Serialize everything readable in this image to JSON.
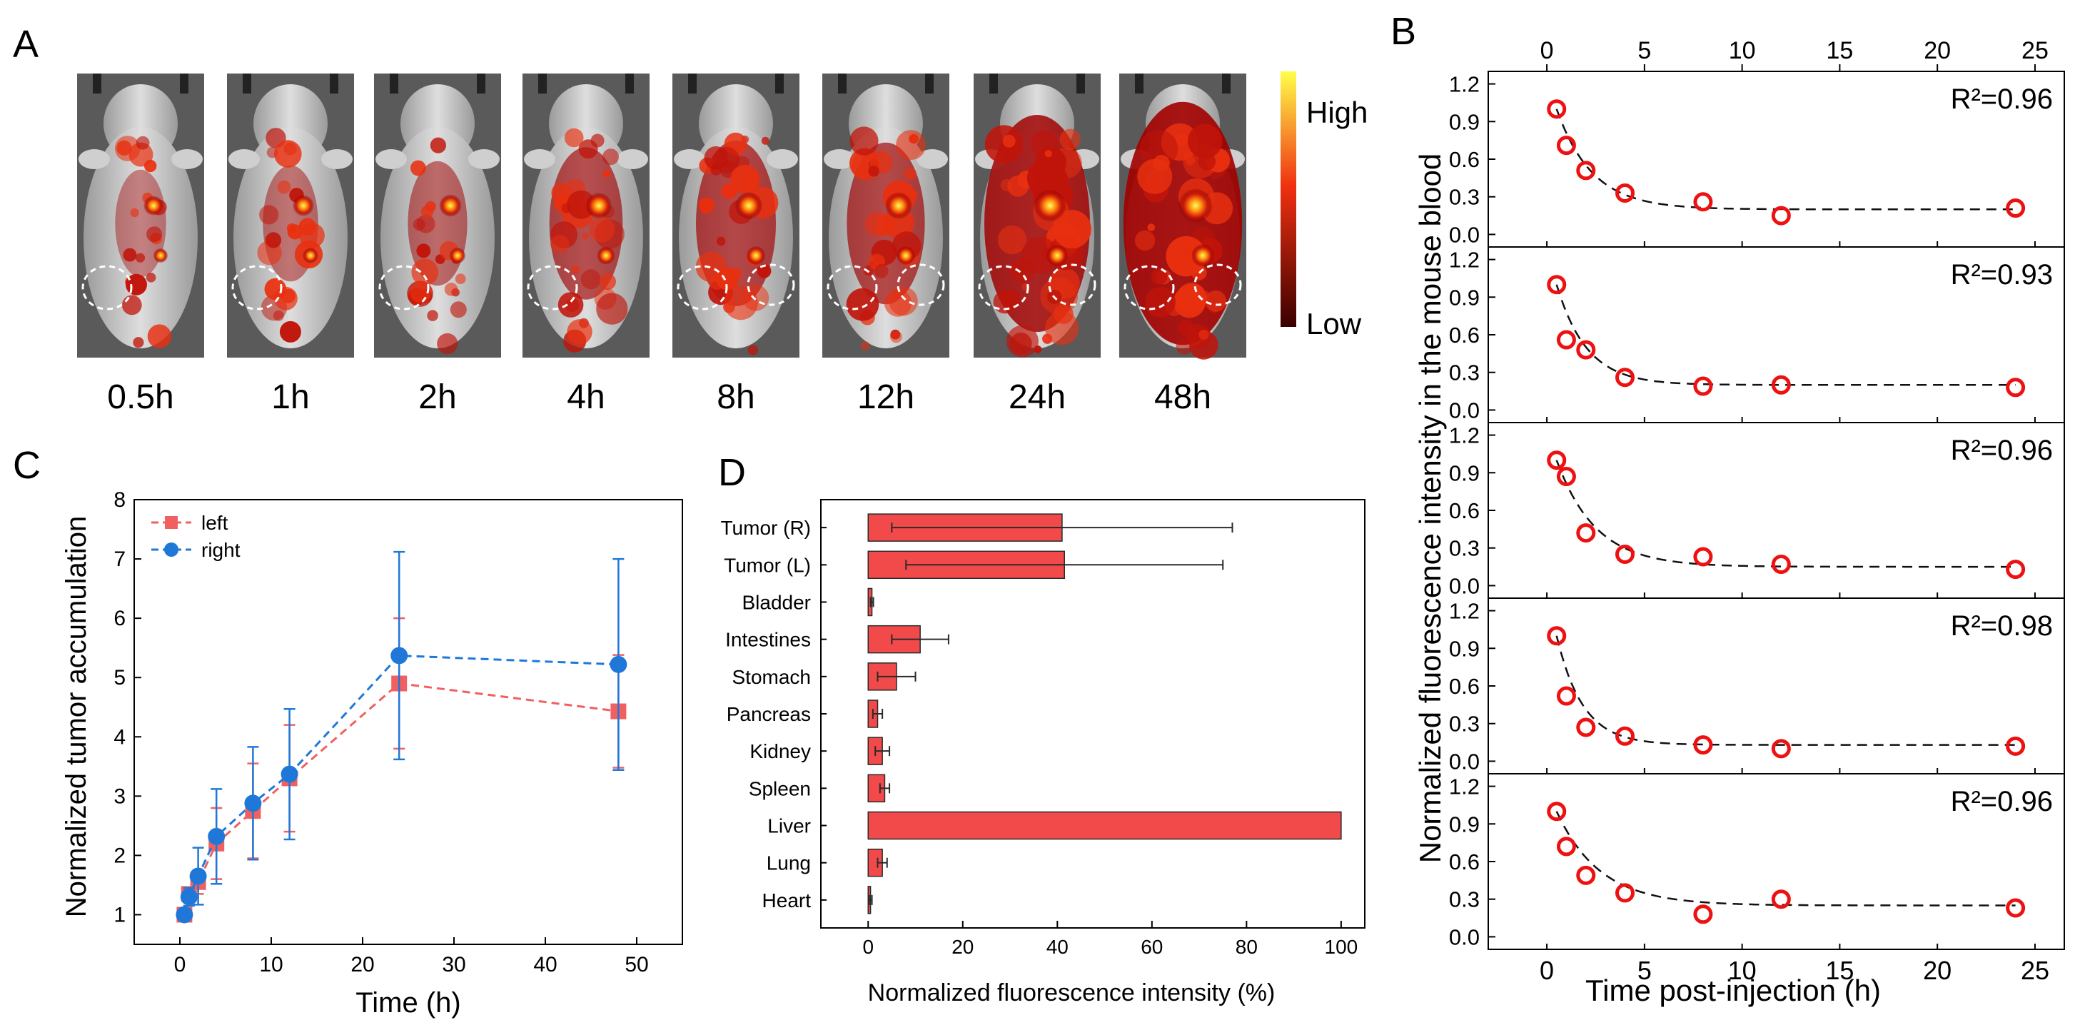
{
  "panels": {
    "a": "A",
    "b": "B",
    "c": "C",
    "d": "D"
  },
  "imaging": {
    "times": [
      "0.5h",
      "1h",
      "2h",
      "4h",
      "8h",
      "12h",
      "24h",
      "48h"
    ],
    "signal_level": [
      0.25,
      0.32,
      0.38,
      0.55,
      0.62,
      0.6,
      0.85,
      0.95
    ],
    "colorbar_high": "High",
    "colorbar_low": "Low",
    "colors": {
      "low": "#3a0000",
      "mid": "#e81e10",
      "high": "#ffff4a",
      "background": "#5a5a5a"
    }
  },
  "chart_data": [
    {
      "id": "blood",
      "type": "scatter",
      "title": "",
      "xlabel": "Time post-injection (h)",
      "ylabel": "Normalized fluorescence intensity in the mouse blood",
      "xlim": [
        -3,
        26.5
      ],
      "ylim": [
        -0.1,
        1.3
      ],
      "xticks": [
        0,
        5,
        10,
        15,
        20,
        25
      ],
      "yticks": [
        0.0,
        0.3,
        0.6,
        0.9,
        1.2
      ],
      "ytick_labels": [
        "0.0",
        "0.3",
        "0.6",
        "0.9",
        "1.2"
      ],
      "x": [
        0.5,
        1,
        2,
        4,
        8,
        12,
        24
      ],
      "subplots": [
        {
          "r2": "R²=0.96",
          "values": [
            1.0,
            0.71,
            0.51,
            0.33,
            0.26,
            0.15,
            0.21
          ],
          "fit_floor": 0.2,
          "fit_k": 0.55
        },
        {
          "r2": "R²=0.93",
          "values": [
            1.0,
            0.56,
            0.48,
            0.26,
            0.19,
            0.2,
            0.18
          ],
          "fit_floor": 0.2,
          "fit_k": 0.65
        },
        {
          "r2": "R²=0.96",
          "values": [
            1.0,
            0.87,
            0.42,
            0.25,
            0.23,
            0.17,
            0.13
          ],
          "fit_floor": 0.15,
          "fit_k": 0.5
        },
        {
          "r2": "R²=0.98",
          "values": [
            1.0,
            0.52,
            0.27,
            0.2,
            0.13,
            0.1,
            0.12
          ],
          "fit_floor": 0.13,
          "fit_k": 0.75
        },
        {
          "r2": "R²=0.96",
          "values": [
            1.0,
            0.72,
            0.49,
            0.35,
            0.18,
            0.3,
            0.23
          ],
          "fit_floor": 0.25,
          "fit_k": 0.45
        }
      ],
      "colors": {
        "marker": "#ee1111",
        "fit": "#111111"
      }
    },
    {
      "id": "tumor",
      "type": "line",
      "title": "",
      "xlabel": "Time (h)",
      "ylabel": "Normalized tumor accumulation",
      "xlim": [
        -5,
        55
      ],
      "ylim": [
        0.5,
        8
      ],
      "xticks": [
        0,
        10,
        20,
        30,
        40,
        50
      ],
      "yticks": [
        1,
        2,
        3,
        4,
        5,
        6,
        7,
        8
      ],
      "x": [
        0.5,
        1,
        2,
        4,
        8,
        12,
        24,
        48
      ],
      "series": [
        {
          "name": "left",
          "values": [
            1.0,
            1.35,
            1.55,
            2.2,
            2.75,
            3.3,
            4.9,
            4.43
          ],
          "errors": [
            0.05,
            0.1,
            0.2,
            0.6,
            0.8,
            0.9,
            1.1,
            0.95
          ],
          "color": "#f06060",
          "marker": "square"
        },
        {
          "name": "right",
          "values": [
            1.0,
            1.3,
            1.65,
            2.32,
            2.88,
            3.37,
            5.37,
            5.22
          ],
          "errors": [
            0.05,
            0.15,
            0.48,
            0.8,
            0.95,
            1.1,
            1.75,
            1.78
          ],
          "color": "#1f78d8",
          "marker": "circle"
        }
      ]
    },
    {
      "id": "organs",
      "type": "bar",
      "orientation": "horizontal",
      "title": "",
      "xlabel": "Normalized fluorescence intensity (%)",
      "ylabel": "",
      "xlim": [
        -10,
        105
      ],
      "xticks": [
        0,
        20,
        40,
        60,
        80,
        100
      ],
      "categories": [
        "Tumor (R)",
        "Tumor (L)",
        "Bladder",
        "Intestines",
        "Stomach",
        "Pancreas",
        "Kidney",
        "Spleen",
        "Liver",
        "Lung",
        "Heart"
      ],
      "values": [
        41,
        41.5,
        0.8,
        11,
        6,
        2,
        3,
        3.5,
        100,
        3,
        0.5
      ],
      "errors": [
        36,
        33.5,
        0.3,
        6,
        4,
        1,
        1.5,
        1,
        0,
        1,
        0.3
      ],
      "colors": {
        "bar": "#f24a4a",
        "edge": "#2a2a2a"
      }
    }
  ]
}
